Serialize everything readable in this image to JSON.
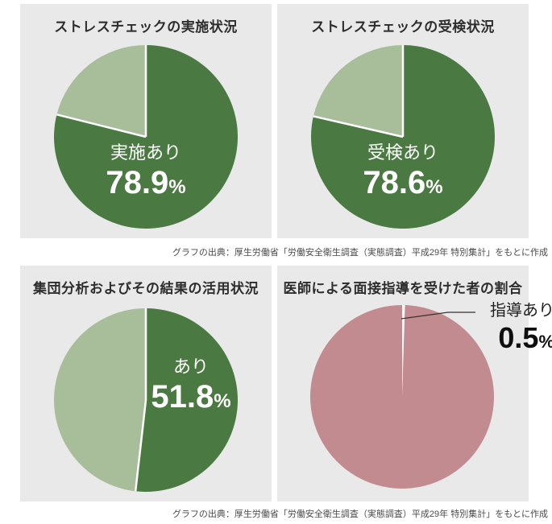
{
  "page": {
    "background": "#ffffff",
    "panel_background": "#e9e9e9",
    "caption_row1": "グラフの出典：厚生労働省「労働安全衛生調査（実態調査）平成29年 特別集計」をもとに作成",
    "caption_row2": "グラフの出典：厚生労働省「労働安全衛生調査（実態調査）平成29年 特別集計」をもとに作成"
  },
  "colors": {
    "dark_green": "#4a7a41",
    "light_green": "#a8be9b",
    "mauve": "#c28b90",
    "white": "#ffffff"
  },
  "charts": [
    {
      "title": "ストレスチェックの実施状況",
      "center_label": "実施あり",
      "center_value": "78.9",
      "percent_sign": "%",
      "chart_data": {
        "type": "pie",
        "start_angle": "top",
        "direction": "clockwise",
        "slices": [
          {
            "label": "実施あり",
            "value": 78.9,
            "color": "#4a7a41"
          },
          {
            "value": 21.1,
            "color": "#a8be9b"
          }
        ]
      }
    },
    {
      "title": "ストレスチェックの受検状況",
      "center_label": "受検あり",
      "center_value": "78.6",
      "percent_sign": "%",
      "chart_data": {
        "type": "pie",
        "start_angle": "top",
        "direction": "clockwise",
        "slices": [
          {
            "label": "受検あり",
            "value": 78.6,
            "color": "#4a7a41"
          },
          {
            "value": 21.4,
            "color": "#a8be9b"
          }
        ]
      }
    },
    {
      "title": "集団分析およびその結果の活用状況",
      "center_label": "あり",
      "center_value": "51.8",
      "percent_sign": "%",
      "chart_data": {
        "type": "pie",
        "start_angle": "top",
        "direction": "clockwise",
        "slices": [
          {
            "label": "あり",
            "value": 51.8,
            "color": "#4a7a41"
          },
          {
            "value": 48.2,
            "color": "#a8be9b"
          }
        ]
      }
    },
    {
      "title": "医師による面接指導を受けた者の割合",
      "callout_label": "指導あり",
      "callout_value": "0.5",
      "percent_sign": "%",
      "chart_data": {
        "type": "pie",
        "start_angle": "top",
        "direction": "clockwise",
        "separators": false,
        "slices": [
          {
            "label": "指導あり",
            "value": 0.5,
            "color": "#ffffff"
          },
          {
            "value": 99.5,
            "color": "#c28b90"
          }
        ]
      }
    }
  ]
}
